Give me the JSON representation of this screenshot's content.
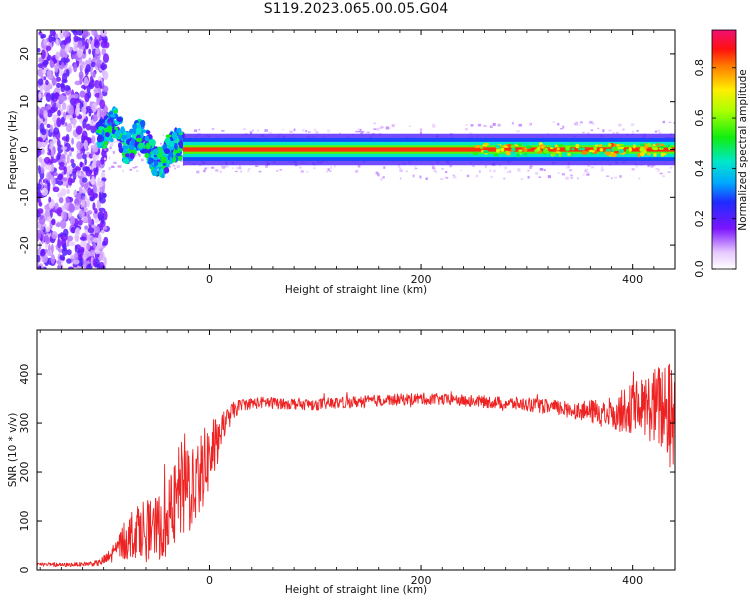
{
  "title": "S119.2023.065.00.05.G04",
  "colors": {
    "snr_line": "#ee2222",
    "frame": "#000000"
  },
  "chart_data": [
    {
      "type": "heatmap",
      "xlabel": "Height of straight line (km)",
      "ylabel": "Frequency (Hz)",
      "xlim": [
        -163,
        440
      ],
      "ylim": [
        -25,
        25
      ],
      "xticks": [
        0,
        200,
        400
      ],
      "yticks": [
        -20,
        -10,
        0,
        10,
        20
      ],
      "colorbar": {
        "label": "Normalized spectral amplitude",
        "range": [
          0,
          0.95
        ],
        "ticks": [
          "0.0",
          "0.2",
          "0.4",
          "0.6",
          "0.8"
        ],
        "colormap": "white-purple-blue-cyan-green-yellow-red-magenta"
      },
      "features": {
        "carrier_frequency_hz": 0,
        "carrier_start_km": -25,
        "noise_region_km": [
          -163,
          -105
        ],
        "transition_region_km": [
          -105,
          -25
        ],
        "peak_excursion_hz": 8,
        "peak_excursion_km": -88
      }
    },
    {
      "type": "line",
      "xlabel": "Height of straight line (km)",
      "ylabel": "SNR (10 * v/v)",
      "xlim": [
        -163,
        440
      ],
      "ylim": [
        0,
        490
      ],
      "xticks": [
        0,
        200,
        400
      ],
      "yticks": [
        0,
        100,
        200,
        300,
        400
      ],
      "series": [
        {
          "x": [
            -163,
            -140,
            -120,
            -105,
            -95,
            -85,
            -75,
            -65,
            -55,
            -45,
            -35,
            -28,
            -22,
            -15,
            -10,
            -5,
            0,
            5,
            10,
            15,
            20,
            30,
            50,
            75,
            100,
            150,
            200,
            250,
            300,
            350,
            380,
            410,
            430,
            440
          ],
          "y": [
            12,
            10,
            12,
            14,
            25,
            50,
            70,
            90,
            80,
            90,
            120,
            160,
            170,
            180,
            200,
            210,
            230,
            250,
            280,
            300,
            320,
            338,
            342,
            340,
            338,
            345,
            350,
            345,
            338,
            325,
            320,
            335,
            330,
            300
          ],
          "spread": [
            4,
            4,
            4,
            6,
            15,
            30,
            50,
            60,
            60,
            70,
            80,
            100,
            120,
            90,
            90,
            80,
            70,
            60,
            40,
            25,
            20,
            12,
            12,
            12,
            12,
            12,
            12,
            12,
            14,
            18,
            35,
            60,
            100,
            130
          ]
        }
      ]
    }
  ]
}
